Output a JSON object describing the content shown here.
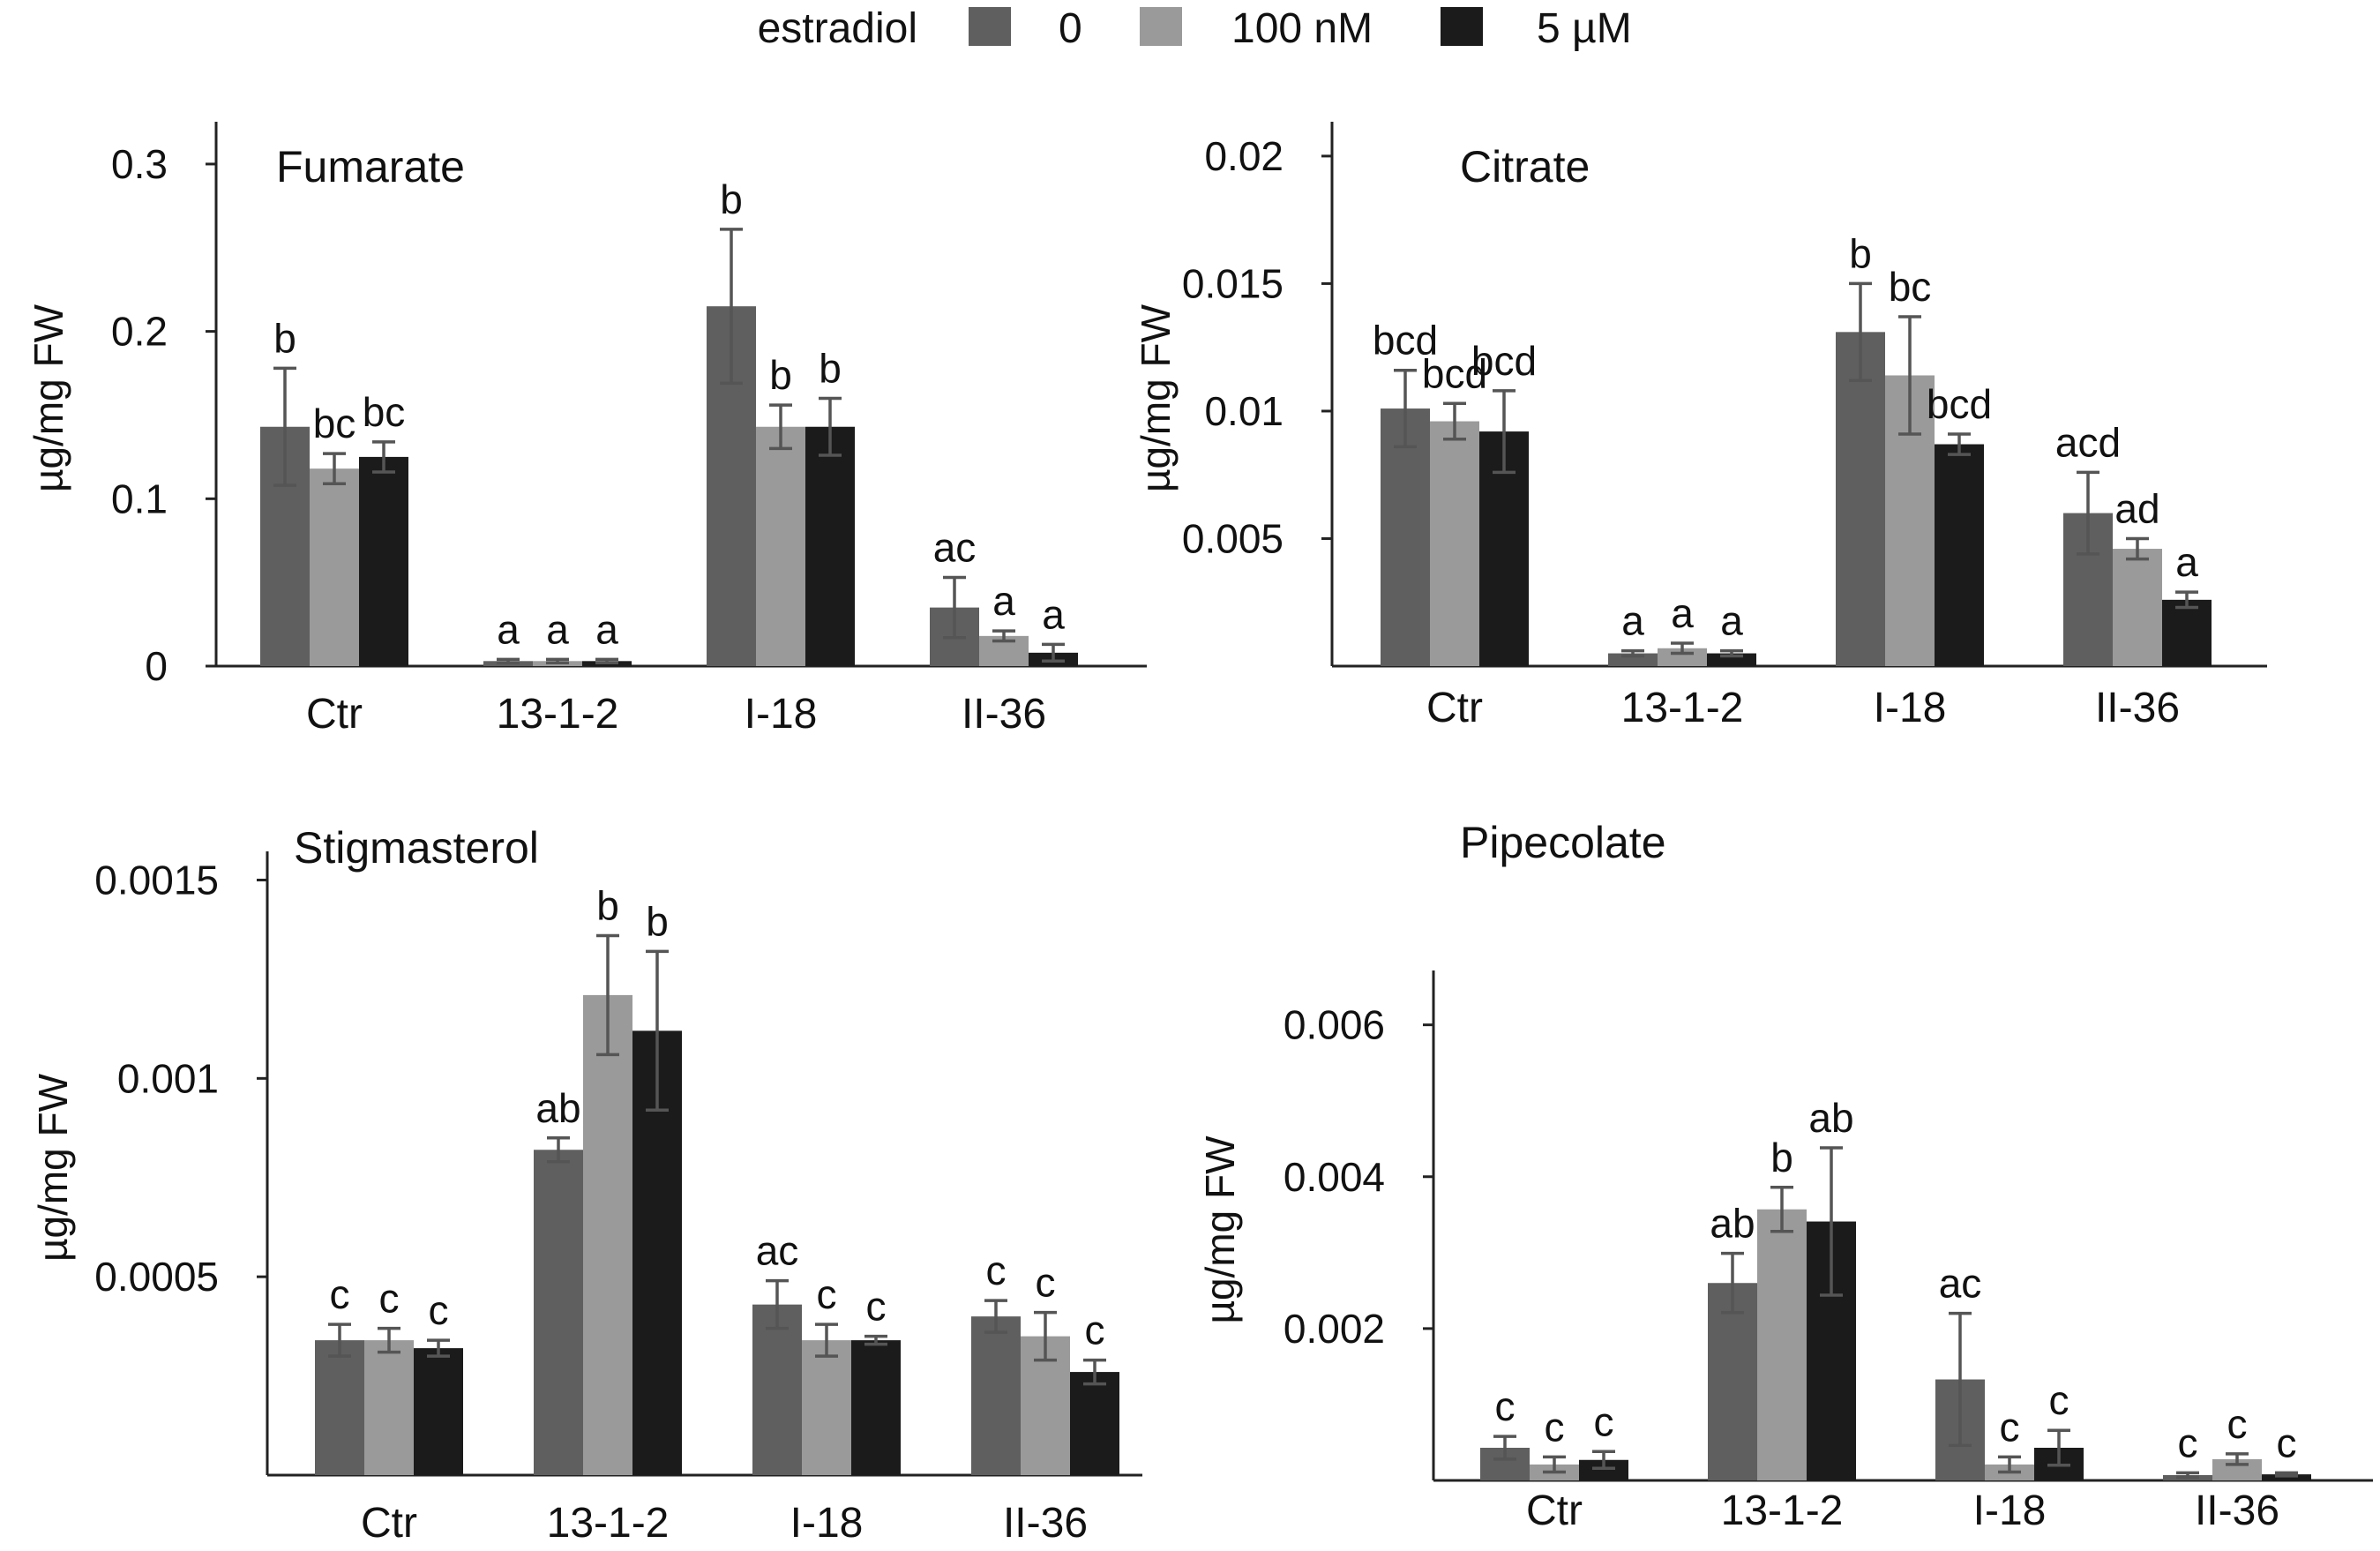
{
  "legend": {
    "title": "estradiol",
    "entries": [
      {
        "label": "0",
        "color": "#5f5f5f"
      },
      {
        "label": "100 nM",
        "color": "#9a9a9a"
      },
      {
        "label": "5 µM",
        "color": "#1b1b1b"
      }
    ]
  },
  "chart_data": [
    {
      "type": "bar",
      "title": "Fumarate",
      "ylabel": "µg/mg FW",
      "categories": [
        "Ctr",
        "13-1-2",
        "I-18",
        "II-36"
      ],
      "ylim": [
        0,
        0.32
      ],
      "yticks": [
        0,
        0.1,
        0.2,
        0.3
      ],
      "ytick_labels": [
        "0",
        "0.1",
        "0.2",
        "0.3"
      ],
      "series": [
        {
          "values": [
            0.143,
            0.003,
            0.215,
            0.035
          ],
          "errors": [
            0.035,
            0.001,
            0.046,
            0.018
          ],
          "labels": [
            "b",
            "a",
            "b",
            "ac"
          ]
        },
        {
          "values": [
            0.118,
            0.003,
            0.143,
            0.018
          ],
          "errors": [
            0.009,
            0.001,
            0.013,
            0.003
          ],
          "labels": [
            "bc",
            "a",
            "b",
            "a"
          ]
        },
        {
          "values": [
            0.125,
            0.003,
            0.143,
            0.008
          ],
          "errors": [
            0.009,
            0.001,
            0.017,
            0.005
          ],
          "labels": [
            "bc",
            "a",
            "b",
            "a"
          ]
        }
      ]
    },
    {
      "type": "bar",
      "title": "Citrate",
      "ylabel": "µg/mg FW",
      "categories": [
        "Ctr",
        "13-1-2",
        "I-18",
        "II-36"
      ],
      "ylim": [
        0,
        0.021
      ],
      "yticks": [
        0.005,
        0.01,
        0.015,
        0.02
      ],
      "ytick_labels": [
        "0.005",
        "0.01",
        "0.015",
        "0.02"
      ],
      "series": [
        {
          "values": [
            0.0101,
            0.0005,
            0.0131,
            0.006
          ],
          "errors": [
            0.0015,
            0.0001,
            0.0019,
            0.0016
          ],
          "labels": [
            "bcd",
            "a",
            "b",
            "acd"
          ]
        },
        {
          "values": [
            0.0096,
            0.0007,
            0.0114,
            0.0046
          ],
          "errors": [
            0.0007,
            0.0002,
            0.0023,
            0.0004
          ],
          "labels": [
            "bcd",
            "a",
            "bc",
            "ad"
          ]
        },
        {
          "values": [
            0.0092,
            0.0005,
            0.0087,
            0.0026
          ],
          "errors": [
            0.0016,
            0.0001,
            0.0004,
            0.0003
          ],
          "labels": [
            "bcd",
            "a",
            "bcd",
            "a"
          ]
        }
      ]
    },
    {
      "type": "bar",
      "title": "Stigmasterol",
      "ylabel": "µg/mg FW",
      "categories": [
        "Ctr",
        "13-1-2",
        "I-18",
        "II-36"
      ],
      "ylim": [
        0,
        0.00155
      ],
      "yticks": [
        0.0005,
        0.001,
        0.0015
      ],
      "ytick_labels": [
        "0.0005",
        "0.001",
        "0.0015"
      ],
      "series": [
        {
          "values": [
            0.00034,
            0.00082,
            0.00043,
            0.0004
          ],
          "errors": [
            4e-05,
            3e-05,
            6e-05,
            4e-05
          ],
          "labels": [
            "c",
            "ab",
            "ac",
            "c"
          ]
        },
        {
          "values": [
            0.00034,
            0.00121,
            0.00034,
            0.00035
          ],
          "errors": [
            3e-05,
            0.00015,
            4e-05,
            6e-05
          ],
          "labels": [
            "c",
            "b",
            "c",
            "c"
          ]
        },
        {
          "values": [
            0.00032,
            0.00112,
            0.00034,
            0.00026
          ],
          "errors": [
            2e-05,
            0.0002,
            1e-05,
            3e-05
          ],
          "labels": [
            "c",
            "b",
            "c",
            "c"
          ]
        }
      ]
    },
    {
      "type": "bar",
      "title": "Pipecolate",
      "ylabel": "µg/mg FW",
      "categories": [
        "Ctr",
        "13-1-2",
        "I-18",
        "II-36"
      ],
      "ylim": [
        0,
        0.0066
      ],
      "yticks": [
        0.002,
        0.004,
        0.006
      ],
      "ytick_labels": [
        "0.002",
        "0.004",
        "0.006"
      ],
      "series": [
        {
          "values": [
            0.00043,
            0.0026,
            0.00133,
            7e-05
          ],
          "errors": [
            0.00015,
            0.00039,
            0.00087,
            3e-05
          ],
          "labels": [
            "c",
            "ab",
            "ac",
            "c"
          ]
        },
        {
          "values": [
            0.00021,
            0.00357,
            0.00021,
            0.00028
          ],
          "errors": [
            0.0001,
            0.00029,
            0.0001,
            7e-05
          ],
          "labels": [
            "c",
            "b",
            "c",
            "c"
          ]
        },
        {
          "values": [
            0.00027,
            0.00341,
            0.00043,
            8e-05
          ],
          "errors": [
            0.00011,
            0.00097,
            0.00023,
            2e-05
          ],
          "labels": [
            "c",
            "ab",
            "c",
            "c"
          ]
        }
      ]
    }
  ]
}
